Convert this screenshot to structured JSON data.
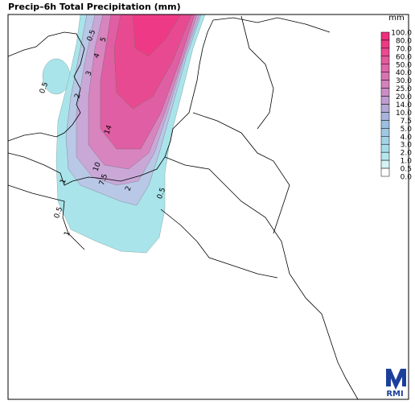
{
  "title": "Precip–6h Total Precipitation (mm)",
  "legend": {
    "unit": "mm",
    "labels": [
      "100.0",
      "80.0",
      "70.0",
      "60.0",
      "50.0",
      "40.0",
      "30.0",
      "25.0",
      "20.0",
      "14.0",
      "10.0",
      "7.5",
      "5.0",
      "4.0",
      "3.0",
      "2.0",
      "1.0",
      "0.5",
      "0.0"
    ]
  },
  "contour_labels": [
    "0.5",
    "5",
    "4",
    "3",
    "2",
    "14",
    "10",
    "7.5",
    "2",
    "1",
    "0.5",
    "0.5",
    "1",
    "0.5"
  ],
  "logo": "RMI"
}
